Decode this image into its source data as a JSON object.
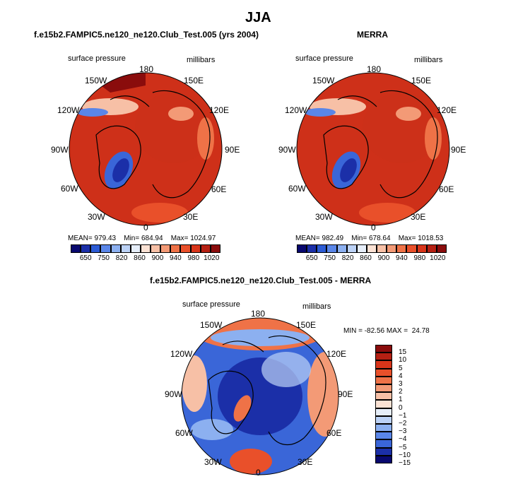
{
  "main_title": "JJA",
  "panels": [
    {
      "title": "f.e15b2.FAMPIC5.ne120_ne120.Club_Test.005 (yrs 2004)",
      "field": "surface pressure",
      "units": "millibars",
      "lons": [
        "180",
        "150E",
        "120E",
        "90E",
        "60E",
        "30E",
        "0",
        "30W",
        "60W",
        "90W",
        "120W",
        "150W"
      ],
      "stats": {
        "mean_label": "MEAN=",
        "mean": "979.43",
        "min_label": "Min=",
        "min": "684.94",
        "max_label": "Max=",
        "max": "1024.97"
      }
    },
    {
      "title": "MERRA",
      "field": "surface pressure",
      "units": "millibars",
      "lons": [
        "180",
        "150E",
        "120E",
        "90E",
        "60E",
        "30E",
        "0",
        "30W",
        "60W",
        "90W",
        "120W",
        "150W"
      ],
      "stats": {
        "mean_label": "MEAN=",
        "mean": "982.49",
        "min_label": "Min=",
        "min": "678.64",
        "max_label": "Max=",
        "max": "1018.53"
      }
    },
    {
      "title": "f.e15b2.FAMPIC5.ne120_ne120.Club_Test.005 - MERRA",
      "field": "surface pressure",
      "units": "millibars",
      "lons": [
        "180",
        "150E",
        "120E",
        "90E",
        "60E",
        "30E",
        "0",
        "30W",
        "60W",
        "90W",
        "120W",
        "150W"
      ],
      "minmax": "MIN = -82.56 MAX =  24.78"
    }
  ],
  "colorbar_horizontal": {
    "colors": [
      "#08086e",
      "#1b2fa8",
      "#2c5bd4",
      "#5a86e8",
      "#8cb0f0",
      "#bcd2f6",
      "#e6eef9",
      "#fbe2d4",
      "#f7c0a6",
      "#f39a76",
      "#ef7247",
      "#e9502a",
      "#d8351a",
      "#b52013",
      "#8a0c0c"
    ],
    "ticks": [
      "650",
      "750",
      "820",
      "860",
      "900",
      "940",
      "980",
      "1020"
    ]
  },
  "colorbar_vertical": {
    "colors": [
      "#8a0c0c",
      "#b52013",
      "#d8351a",
      "#e9502a",
      "#ef7247",
      "#f39a76",
      "#f7c0a6",
      "#fbe2d4",
      "#e6eef9",
      "#bcd2f6",
      "#8cb0f0",
      "#5a86e8",
      "#3a66d8",
      "#1b2fa8",
      "#08086e"
    ],
    "ticks": [
      "15",
      "10",
      "5",
      "4",
      "3",
      "2",
      "1",
      "0",
      "−1",
      "−2",
      "−3",
      "−4",
      "−5",
      "−10",
      "−15"
    ]
  }
}
